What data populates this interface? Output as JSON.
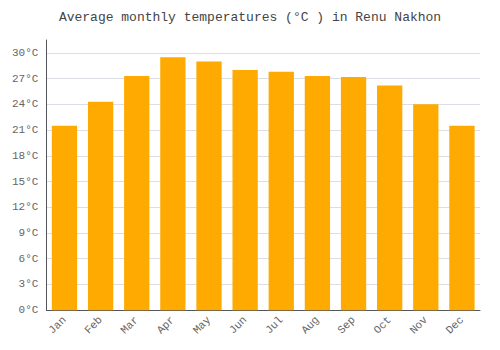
{
  "chart_data": {
    "type": "bar",
    "title": "Average monthly temperatures (°C ) in Renu Nakhon",
    "categories": [
      "Jan",
      "Feb",
      "Mar",
      "Apr",
      "May",
      "Jun",
      "Jul",
      "Aug",
      "Sep",
      "Oct",
      "Nov",
      "Dec"
    ],
    "values": [
      21.5,
      24.3,
      27.3,
      29.5,
      29.0,
      28.0,
      27.8,
      27.3,
      27.2,
      26.2,
      24.0,
      21.5
    ],
    "color": "#FFAA00",
    "ylim": [
      0,
      31.5
    ],
    "yticks": [
      {
        "value": 0,
        "label": "0°C"
      },
      {
        "value": 3,
        "label": "3°C"
      },
      {
        "value": 6,
        "label": "6°C"
      },
      {
        "value": 9,
        "label": "9°C"
      },
      {
        "value": 12,
        "label": "12°C"
      },
      {
        "value": 15,
        "label": "15°C"
      },
      {
        "value": 18,
        "label": "18°C"
      },
      {
        "value": 21,
        "label": "21°C"
      },
      {
        "value": 24,
        "label": "24°C"
      },
      {
        "value": 27,
        "label": "27°C"
      },
      {
        "value": 30,
        "label": "30°C"
      }
    ],
    "grid": true
  }
}
